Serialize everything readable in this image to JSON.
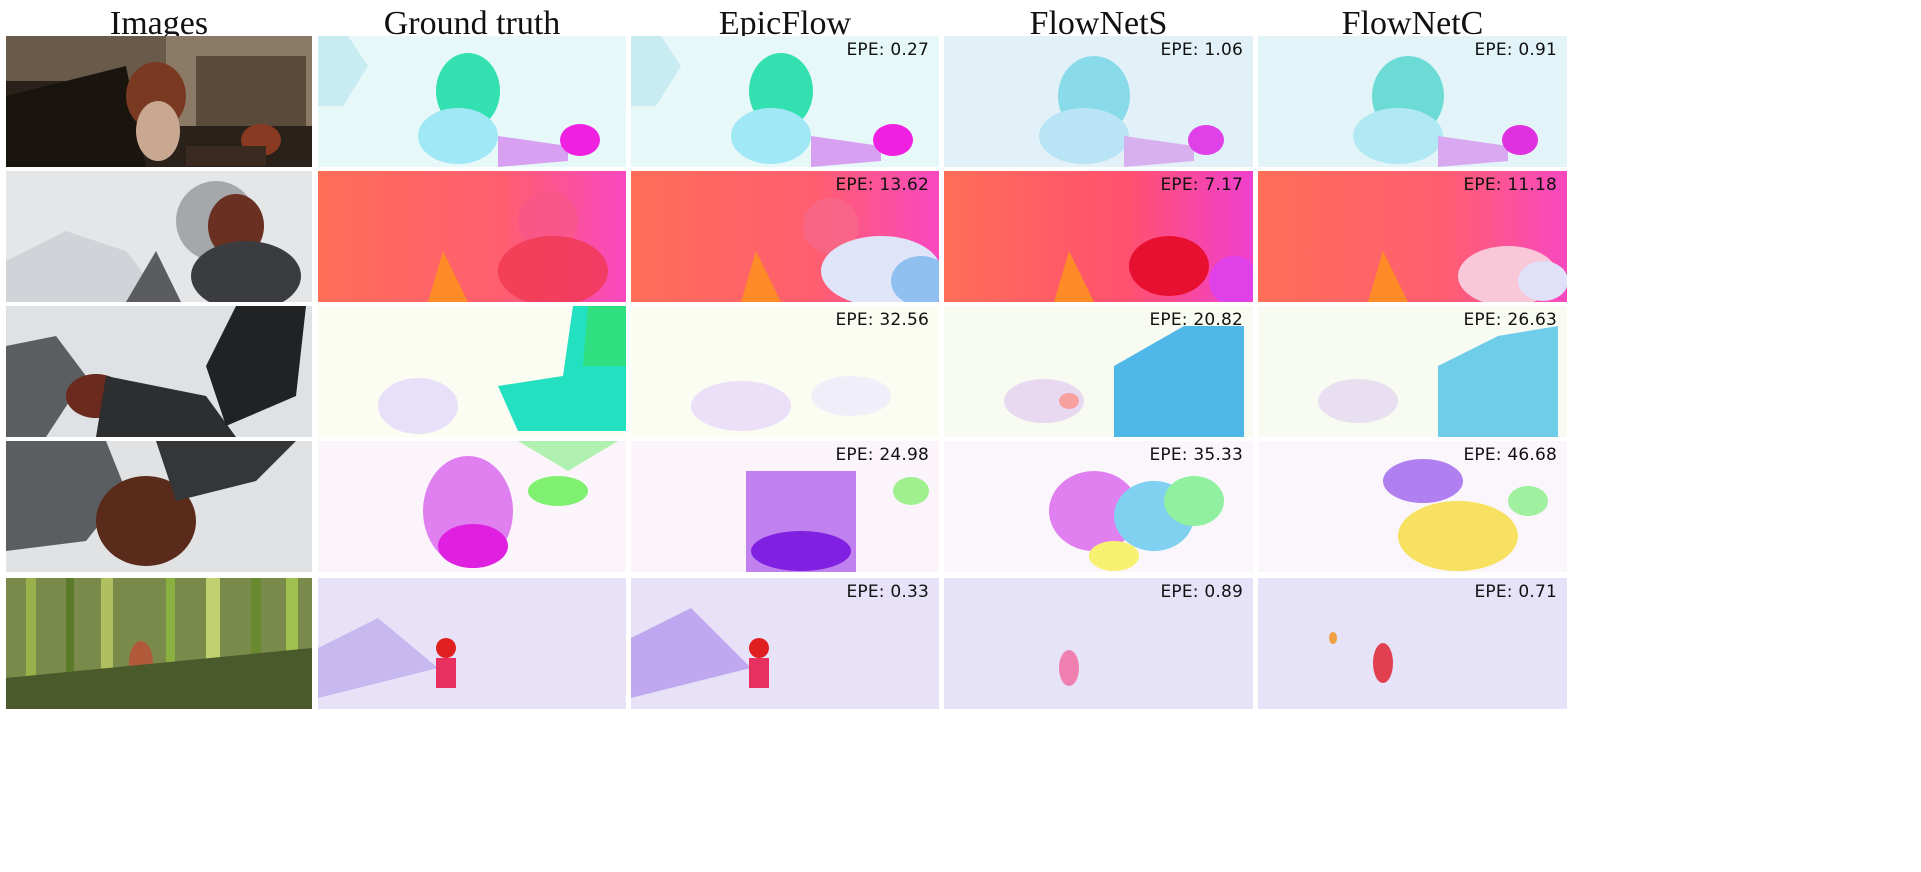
{
  "columns": [
    "Images",
    "Ground truth",
    "EpicFlow",
    "FlowNetS",
    "FlowNetC"
  ],
  "rows": [
    {
      "scene": "cave-girl-with-ball",
      "epe": [
        "EPE: 0.27",
        "EPE: 1.06",
        "EPE: 0.91"
      ]
    },
    {
      "scene": "girl-in-fog",
      "epe": [
        "EPE: 13.62",
        "EPE: 7.17",
        "EPE: 11.18"
      ]
    },
    {
      "scene": "dragon-arm-motion",
      "epe": [
        "EPE: 32.56",
        "EPE: 20.82",
        "EPE: 26.63"
      ]
    },
    {
      "scene": "rocky-cliff-girl",
      "epe": [
        "EPE: 24.98",
        "EPE: 35.33",
        "EPE: 46.68"
      ]
    },
    {
      "scene": "bamboo-forest",
      "epe": [
        "EPE: 0.33",
        "EPE: 0.89",
        "EPE: 0.71"
      ]
    }
  ],
  "colors": {
    "row1_bg": "#e6f8f8",
    "row2_bg": "#ff6b5a",
    "row3_bg": "#fbfdf2",
    "row4_bg": "#fbf4fb",
    "row5_bg": "#e8e2f8"
  }
}
